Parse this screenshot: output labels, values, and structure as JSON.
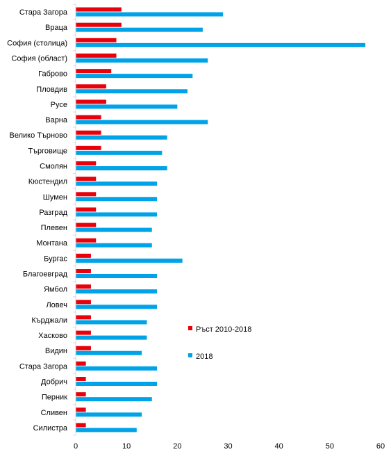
{
  "chart_data": {
    "type": "bar",
    "orientation": "horizontal",
    "categories": [
      "Стара Загора",
      "Враца",
      "София (столица)",
      "София (област)",
      "Габрово",
      "Пловдив",
      "Русе",
      "Варна",
      "Велико Търново",
      "Търговище",
      "Смолян",
      "Кюстендил",
      "Шумен",
      "Разград",
      "Плевен",
      "Монтана",
      "Бургас",
      "Благоевград",
      "Ямбол",
      "Ловеч",
      "Кърджали",
      "Хасково",
      "Видин",
      "Стара Загора",
      "Добрич",
      "Перник",
      "Сливен",
      "Силистра"
    ],
    "series": [
      {
        "name": "Ръст 2010-2018",
        "color": "#e8000b",
        "values": [
          9,
          9,
          8,
          8,
          7,
          6,
          6,
          5,
          5,
          5,
          4,
          4,
          4,
          4,
          4,
          4,
          3,
          3,
          3,
          3,
          3,
          3,
          3,
          2,
          2,
          2,
          2,
          2
        ]
      },
      {
        "name": "2018",
        "color": "#00a3e8",
        "values": [
          29,
          25,
          57,
          26,
          23,
          22,
          20,
          26,
          18,
          17,
          18,
          16,
          16,
          16,
          15,
          15,
          21,
          16,
          16,
          16,
          14,
          14,
          13,
          16,
          16,
          15,
          13,
          12
        ]
      }
    ],
    "xlim": [
      0,
      60
    ],
    "x_ticks": [
      "0",
      "10",
      "20",
      "30",
      "40",
      "50",
      "60"
    ],
    "title": "",
    "xlabel": "",
    "ylabel": "",
    "legend_position": "right",
    "grid": false
  }
}
